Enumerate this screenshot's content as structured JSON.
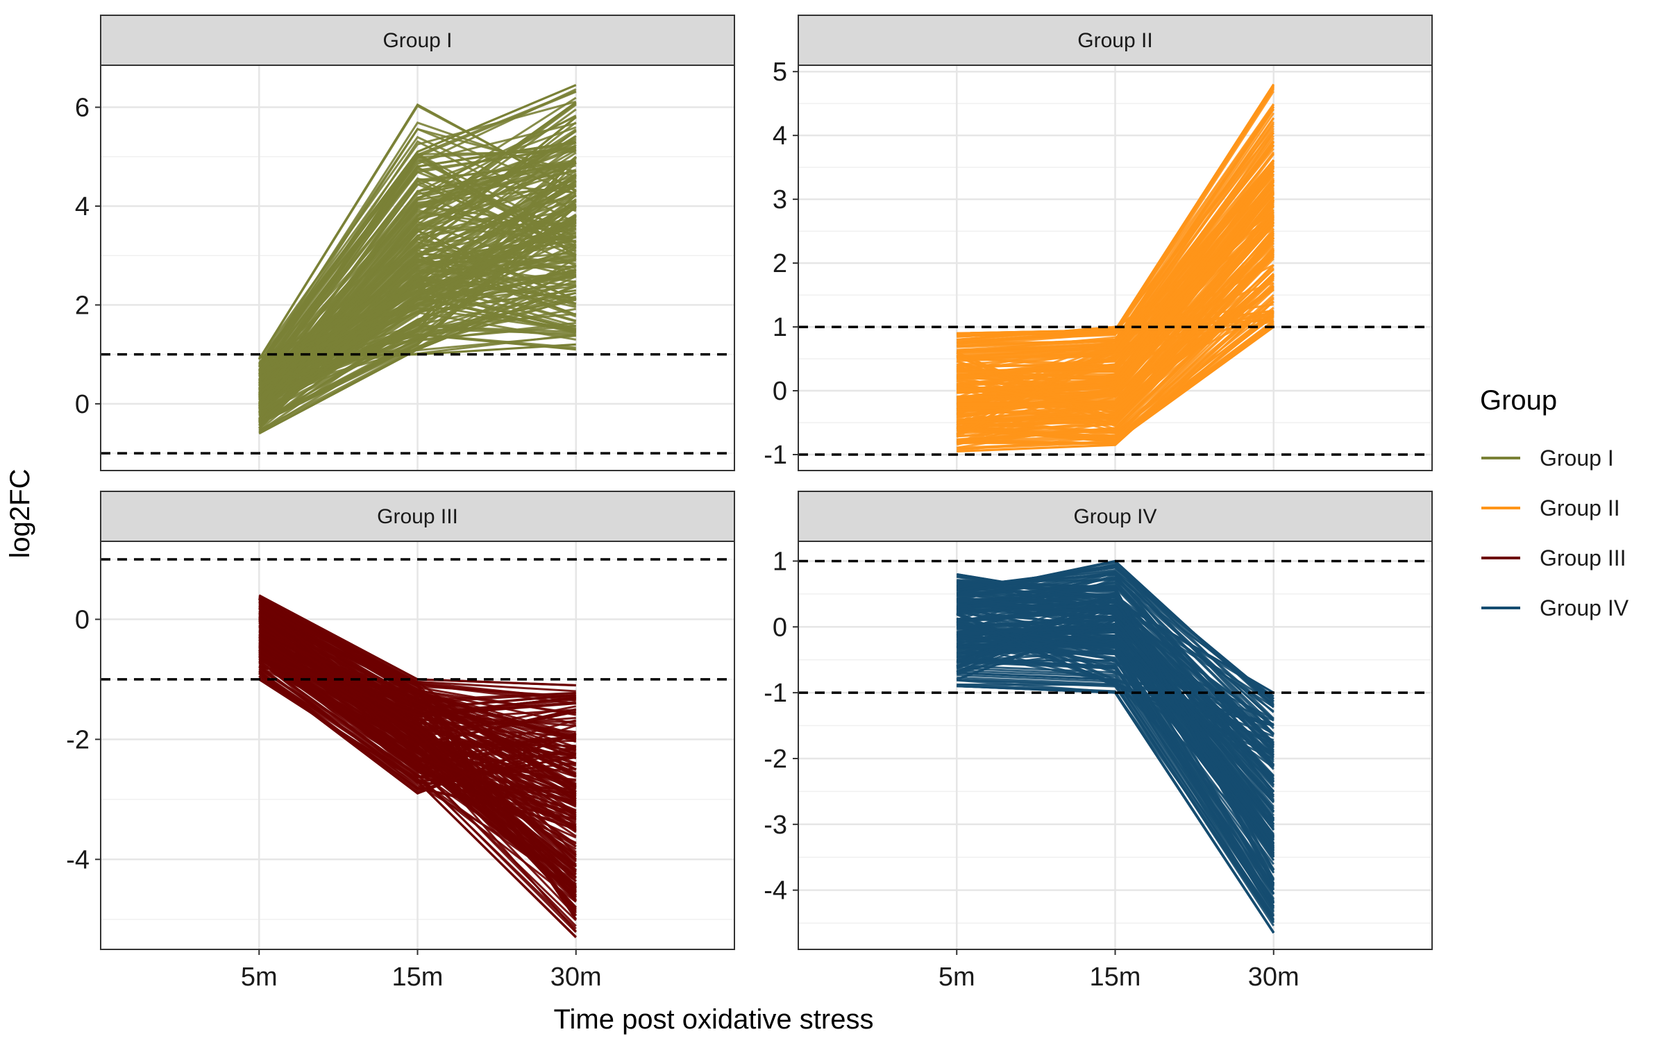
{
  "chart_data": {
    "type": "line",
    "xlabel": "Time post oxidative stress",
    "ylabel": "log2FC",
    "x_categories": [
      "5m",
      "15m",
      "30m"
    ],
    "threshold_lines": [
      1,
      -1
    ],
    "legend": {
      "title": "Group",
      "placement": "right",
      "entries": [
        {
          "name": "Group I",
          "color": "#7a8136"
        },
        {
          "name": "Group II",
          "color": "#ff9519"
        },
        {
          "name": "Group III",
          "color": "#6d0000"
        },
        {
          "name": "Group IV",
          "color": "#154c70"
        }
      ]
    },
    "panels": [
      {
        "title": "Group I",
        "color": "#7a8136",
        "ylim": [
          -1.35,
          6.85
        ],
        "yticks": [
          0,
          2,
          4,
          6
        ],
        "sample_lines": [
          [
            0.9,
            6.05,
            4.3
          ],
          [
            0.8,
            5.1,
            6.45
          ],
          [
            0.6,
            4.8,
            5.3
          ],
          [
            0.3,
            5.05,
            3.0
          ],
          [
            0.0,
            4.3,
            4.9
          ],
          [
            -0.1,
            3.8,
            6.1
          ],
          [
            -0.3,
            3.5,
            2.1
          ],
          [
            0.5,
            3.2,
            5.8
          ],
          [
            0.2,
            2.9,
            3.4
          ],
          [
            -0.5,
            2.6,
            4.5
          ],
          [
            0.7,
            2.3,
            1.5
          ],
          [
            0.1,
            2.0,
            3.8
          ],
          [
            -0.2,
            1.7,
            2.8
          ],
          [
            0.4,
            1.4,
            1.1
          ],
          [
            -0.6,
            1.1,
            2.4
          ],
          [
            0.95,
            1.0,
            1.2
          ],
          [
            -0.4,
            1.2,
            4.0
          ],
          [
            0.0,
            1.5,
            5.0
          ],
          [
            0.6,
            2.1,
            2.6
          ],
          [
            -0.1,
            3.0,
            1.8
          ]
        ]
      },
      {
        "title": "Group II",
        "color": "#ff9519",
        "ylim": [
          -1.25,
          5.1
        ],
        "yticks": [
          -1,
          0,
          1,
          2,
          3,
          4,
          5
        ],
        "sample_lines": [
          [
            0.9,
            0.95,
            4.8
          ],
          [
            0.7,
            0.8,
            4.45
          ],
          [
            0.5,
            0.6,
            3.9
          ],
          [
            0.3,
            0.3,
            3.4
          ],
          [
            0.0,
            0.1,
            3.0
          ],
          [
            -0.2,
            -0.2,
            2.6
          ],
          [
            -0.5,
            -0.4,
            2.2
          ],
          [
            -0.8,
            -0.6,
            1.8
          ],
          [
            -0.95,
            -0.85,
            1.4
          ],
          [
            0.8,
            1.0,
            1.1
          ],
          [
            -0.6,
            -0.8,
            1.0
          ],
          [
            0.2,
            0.5,
            2.9
          ],
          [
            -0.4,
            0.0,
            3.3
          ],
          [
            0.6,
            -0.5,
            2.4
          ],
          [
            -0.7,
            0.7,
            3.6
          ],
          [
            0.1,
            -0.3,
            1.6
          ]
        ]
      },
      {
        "title": "Group III",
        "color": "#6d0000",
        "ylim": [
          -5.5,
          1.3
        ],
        "yticks": [
          -4,
          -2,
          0
        ],
        "sample_lines": [
          [
            0.4,
            -1.0,
            -1.1
          ],
          [
            0.3,
            -1.2,
            -2.0
          ],
          [
            0.1,
            -1.5,
            -3.0
          ],
          [
            -0.1,
            -1.8,
            -4.0
          ],
          [
            -0.3,
            -2.1,
            -1.5
          ],
          [
            -0.5,
            -2.4,
            -4.6
          ],
          [
            -0.7,
            -2.6,
            -3.5
          ],
          [
            -0.9,
            -2.9,
            -1.9
          ],
          [
            -1.0,
            -2.7,
            -5.3
          ],
          [
            0.2,
            -1.1,
            -5.0
          ],
          [
            -0.2,
            -1.4,
            -2.5
          ],
          [
            0.0,
            -2.0,
            -4.8
          ],
          [
            -0.6,
            -1.6,
            -1.3
          ],
          [
            0.35,
            -2.3,
            -3.2
          ],
          [
            -0.8,
            -1.2,
            -2.8
          ],
          [
            -0.4,
            -1.9,
            -4.3
          ]
        ]
      },
      {
        "title": "Group IV",
        "color": "#154c70",
        "ylim": [
          -4.9,
          1.3
        ],
        "yticks": [
          -4,
          -3,
          -2,
          -1,
          0,
          1
        ],
        "sample_lines": [
          [
            0.8,
            0.4,
            -1.0
          ],
          [
            0.5,
            1.0,
            -1.2
          ],
          [
            0.3,
            0.5,
            -1.8
          ],
          [
            0.1,
            0.3,
            -2.5
          ],
          [
            -0.1,
            0.0,
            -3.0
          ],
          [
            -0.3,
            -0.3,
            -3.5
          ],
          [
            -0.5,
            -0.6,
            -4.0
          ],
          [
            -0.7,
            -0.8,
            -4.4
          ],
          [
            -0.9,
            -1.0,
            -4.65
          ],
          [
            0.6,
            0.9,
            -1.1
          ],
          [
            0.4,
            0.2,
            -2.1
          ],
          [
            0.0,
            -0.4,
            -4.2
          ],
          [
            -0.6,
            0.5,
            -3.3
          ],
          [
            0.2,
            -0.9,
            -1.5
          ],
          [
            -0.8,
            0.1,
            -2.8
          ],
          [
            0.7,
            0.6,
            -3.9
          ]
        ]
      }
    ]
  }
}
